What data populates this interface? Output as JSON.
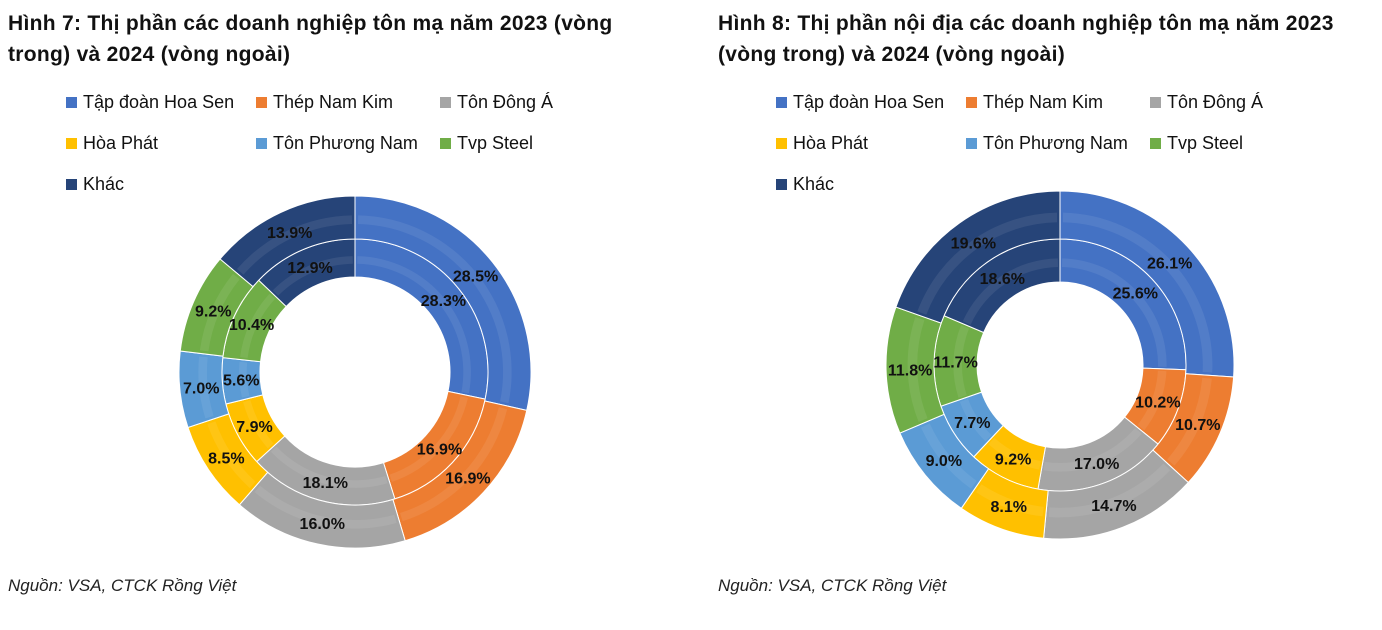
{
  "chart_data": [
    {
      "type": "pie",
      "subtype": "double-donut",
      "title": "Hình 7: Thị phần các doanh nghiệp tôn mạ năm 2023 (vòng trong) và 2024 (vòng ngoài)",
      "categories": [
        "Tập đoàn Hoa Sen",
        "Thép Nam Kim",
        "Tôn Đông Á",
        "Hòa Phát",
        "Tôn Phương Nam",
        "Tvp Steel",
        "Khác"
      ],
      "colors": [
        "#4472c4",
        "#ed7d31",
        "#a5a5a5",
        "#ffc000",
        "#5b9bd5",
        "#70ad47",
        "#264478"
      ],
      "series": [
        {
          "name": "2023 (vòng trong)",
          "values": [
            28.3,
            16.9,
            18.1,
            7.9,
            5.6,
            10.4,
            12.9
          ],
          "labels": [
            "28.3%",
            "16.9%",
            "18.1%",
            "7.9%",
            "5.6%",
            "10.4%",
            "12.9%"
          ]
        },
        {
          "name": "2024 (vòng ngoài)",
          "values": [
            28.5,
            16.9,
            16.0,
            8.5,
            7.0,
            9.2,
            13.9
          ],
          "labels": [
            "28.5%",
            "16.9%",
            "16.0%",
            "8.5%",
            "7.0%",
            "9.2%",
            "13.9%"
          ]
        }
      ],
      "legend_position": "top",
      "source": "Nguồn: VSA, CTCK Rồng Việt"
    },
    {
      "type": "pie",
      "subtype": "double-donut",
      "title": "Hình 8: Thị phần nội địa các doanh nghiệp tôn mạ năm 2023 (vòng trong) và 2024 (vòng ngoài)",
      "categories": [
        "Tập đoàn Hoa Sen",
        "Thép Nam Kim",
        "Tôn Đông Á",
        "Hòa Phát",
        "Tôn Phương Nam",
        "Tvp Steel",
        "Khác"
      ],
      "colors": [
        "#4472c4",
        "#ed7d31",
        "#a5a5a5",
        "#ffc000",
        "#5b9bd5",
        "#70ad47",
        "#264478"
      ],
      "series": [
        {
          "name": "2023 (vòng trong)",
          "values": [
            25.6,
            10.2,
            17.0,
            9.2,
            7.7,
            11.7,
            18.6
          ],
          "labels": [
            "25.6%",
            "10.2%",
            "17.0%",
            "9.2%",
            "7.7%",
            "11.7%",
            "18.6%"
          ]
        },
        {
          "name": "2024 (vòng ngoài)",
          "values": [
            26.1,
            10.7,
            14.7,
            8.1,
            9.0,
            11.8,
            19.6
          ],
          "labels": [
            "26.1%",
            "10.7%",
            "14.7%",
            "8.1%",
            "9.0%",
            "11.8%",
            "19.6%"
          ]
        }
      ],
      "legend_position": "top",
      "source": "Nguồn: VSA, CTCK Rồng Việt"
    }
  ]
}
